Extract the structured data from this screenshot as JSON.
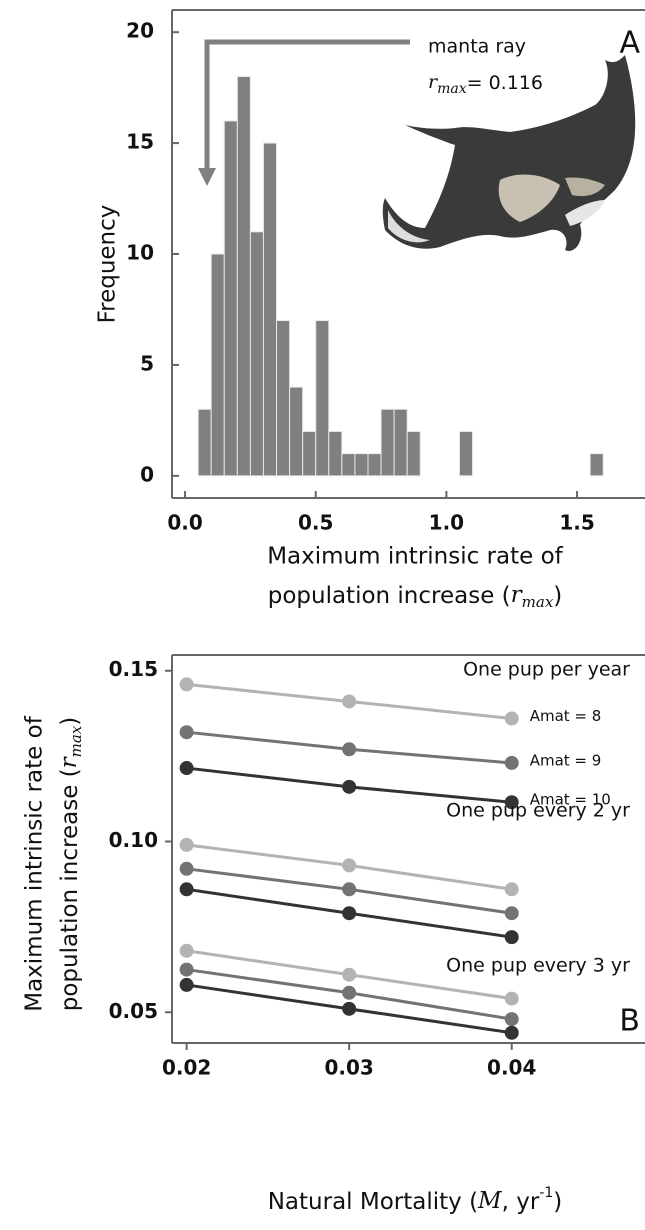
{
  "chart_data": [
    {
      "type": "histogram",
      "panel": "A",
      "bins": [
        0.05,
        0.1,
        0.15,
        0.2,
        0.25,
        0.3,
        0.35,
        0.4,
        0.45,
        0.5,
        0.55,
        0.6,
        0.65,
        0.7,
        0.75,
        0.8,
        0.85,
        0.9,
        0.95,
        1.0,
        1.05,
        1.1,
        1.15,
        1.2,
        1.25,
        1.3,
        1.35,
        1.4,
        1.45,
        1.5,
        1.55,
        1.6
      ],
      "values": [
        3,
        10,
        16,
        18,
        11,
        15,
        7,
        4,
        2,
        7,
        2,
        1,
        1,
        1,
        3,
        3,
        2,
        0,
        0,
        0,
        2,
        0,
        0,
        0,
        0,
        0,
        0,
        0,
        0,
        0,
        1
      ],
      "color": "#808080",
      "xlim": [
        -0.05,
        1.76
      ],
      "ylim": [
        -1,
        21
      ],
      "xticks": [
        {
          "value": 0,
          "label": "0.0"
        },
        0.5,
        {
          "value": 1,
          "label": "1.0"
        },
        1.5
      ],
      "yticks": [
        0,
        5,
        10,
        15,
        20
      ],
      "ylabel": "Frequency",
      "xlabel": [
        "Maximum intrinsic rate of",
        "population increase ("
      ],
      "xlabel_symbol": "r",
      "xlabel_subscript": "max",
      "xlabel_end": ")",
      "annotation": {
        "label": "manta ray",
        "symbol": "r",
        "subscript": "max",
        "text": "= 0.116"
      }
    },
    {
      "type": "line",
      "panel": "B",
      "x": [
        0.02,
        0.03,
        0.04
      ],
      "series": [
        {
          "name": "Amat = 8",
          "color": "#b3b3b3",
          "values": [
            0.146,
            0.141,
            0.136
          ]
        },
        {
          "name": "Amat = 9",
          "color": "#737373",
          "values": [
            0.132,
            0.127,
            0.123
          ]
        },
        {
          "name": "Amat = 10",
          "color": "#333333",
          "values": [
            0.1215,
            0.116,
            0.1115
          ]
        },
        {
          "color": "#b3b3b3",
          "values": [
            0.099,
            0.093,
            0.086
          ]
        },
        {
          "color": "#737373",
          "values": [
            0.092,
            0.086,
            0.079
          ]
        },
        {
          "color": "#333333",
          "values": [
            0.086,
            0.079,
            0.072
          ]
        },
        {
          "color": "#b3b3b3",
          "values": [
            0.068,
            0.061,
            0.054
          ]
        },
        {
          "color": "#737373",
          "values": [
            0.0625,
            0.0557,
            0.048
          ]
        },
        {
          "color": "#333333",
          "values": [
            0.058,
            0.051,
            0.044
          ]
        }
      ],
      "group_labels": [
        "One pup per year",
        "One pup every 2 yr",
        "One pup every 3 yr"
      ],
      "xlim": [
        0.0191,
        0.0482
      ],
      "ylim": [
        0.041,
        0.1546
      ],
      "xticks": [
        0.02,
        0.03,
        0.04
      ],
      "yticks": [
        0.05,
        {
          "value": 0.1,
          "label": "0.10"
        },
        0.15
      ],
      "ylabel": [
        "Maximum intrinsic rate of",
        "population increase  ("
      ],
      "ylabel_symbol": "r",
      "ylabel_subscript": "max",
      "ylabel_end": ")",
      "xlabel": [
        "Natural Mortality (",
        "M",
        ", yr",
        "-1",
        ")"
      ]
    }
  ]
}
